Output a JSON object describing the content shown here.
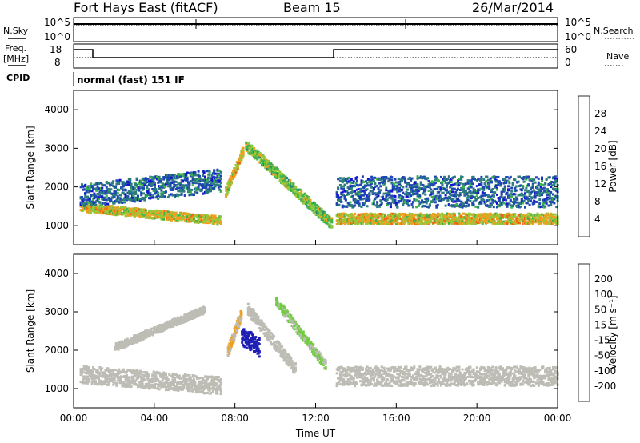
{
  "header": {
    "station": "Fort Hays East (fitACF)",
    "beam": "Beam 15",
    "date": "26/Mar/2014"
  },
  "side_labels": {
    "nsky": "N.Sky",
    "nsearch": "N.Search",
    "freq_line1": "Freq.",
    "freq_line2": "[MHz]",
    "nave": "Nave",
    "cpid": "CPID",
    "cpid_value": "normal (fast) 151 IF"
  },
  "top_axes": {
    "noise_left_ticks": [
      "10^5",
      "10^0"
    ],
    "noise_right_ticks": [
      "10^5",
      "10^0"
    ],
    "freq_left_ticks": [
      "18",
      "8"
    ],
    "nave_right_ticks": [
      "60",
      "0"
    ]
  },
  "colors": {
    "power_scale": [
      "#1414d2",
      "#1e46b4",
      "#2d7d7d",
      "#3cb44b",
      "#96c83c",
      "#f0a01e",
      "#f06414",
      "#e61e0a"
    ],
    "velocity_scale": [
      "#e61414",
      "#f06414",
      "#f0a01e",
      "#bdbdb5",
      "#bdbdb5",
      "#6ecd3c",
      "#2d8c5a",
      "#2846b4",
      "#1e1eb4"
    ]
  },
  "chart_data": [
    {
      "type": "heatmap",
      "title": "Power",
      "xlabel": "",
      "ylabel": "Slant Range [km]",
      "ylim": [
        500,
        4500
      ],
      "yticks": [
        "1000",
        "2000",
        "3000",
        "4000"
      ],
      "colorbar": {
        "label": "Power [dB]",
        "ticks": [
          "4",
          "8",
          "12",
          "16",
          "20",
          "24",
          "28"
        ],
        "range": [
          0,
          32
        ]
      },
      "bands": [
        {
          "x_start": 0.3,
          "x_end": 7.3,
          "y_start": 1500,
          "y_end": 1150,
          "thickness": 220,
          "value": 20
        },
        {
          "x_start": 0.3,
          "x_end": 7.3,
          "y_start": 1800,
          "y_end": 2200,
          "thickness": 600,
          "value": 8
        },
        {
          "x_start": 7.5,
          "x_end": 8.4,
          "y_start": 1900,
          "y_end": 3000,
          "thickness": 250,
          "value": 20
        },
        {
          "x_start": 8.5,
          "x_end": 12.8,
          "y_start": 3100,
          "y_end": 1050,
          "thickness": 280,
          "value": 16
        },
        {
          "x_start": 13.0,
          "x_end": 24.0,
          "y_start": 1200,
          "y_end": 1200,
          "thickness": 280,
          "value": 20
        },
        {
          "x_start": 13.0,
          "x_end": 24.0,
          "y_start": 1900,
          "y_end": 1900,
          "thickness": 800,
          "value": 8
        }
      ]
    },
    {
      "type": "heatmap",
      "title": "Velocity",
      "xlabel": "Time UT",
      "ylabel": "Slant Range [km]",
      "ylim": [
        500,
        4500
      ],
      "yticks": [
        "1000",
        "2000",
        "3000",
        "4000"
      ],
      "xticks": [
        "00:00",
        "04:00",
        "08:00",
        "12:00",
        "16:00",
        "20:00",
        "00:00"
      ],
      "xlim": [
        0,
        24
      ],
      "colorbar": {
        "label": "Velocity [m s⁻¹]",
        "ticks": [
          "-200",
          "-100",
          "-50",
          "-15",
          "15",
          "50",
          "100",
          "200"
        ],
        "range": [
          -250,
          250
        ]
      },
      "bands": [
        {
          "x_start": 0.3,
          "x_end": 7.3,
          "y_start": 1400,
          "y_end": 1100,
          "thickness": 450,
          "value": 0
        },
        {
          "x_start": 2.0,
          "x_end": 6.5,
          "y_start": 2100,
          "y_end": 3100,
          "thickness": 200,
          "value": -60
        },
        {
          "x_start": 7.6,
          "x_end": 8.3,
          "y_start": 2000,
          "y_end": 3000,
          "thickness": 300,
          "value": -80
        },
        {
          "x_start": 8.3,
          "x_end": 9.2,
          "y_start": 2400,
          "y_end": 2100,
          "thickness": 500,
          "value": 250
        },
        {
          "x_start": 8.6,
          "x_end": 11.0,
          "y_start": 3100,
          "y_end": 1500,
          "thickness": 300,
          "value": 0
        },
        {
          "x_start": 10.0,
          "x_end": 12.5,
          "y_start": 3300,
          "y_end": 1600,
          "thickness": 250,
          "value": 30
        },
        {
          "x_start": 13.0,
          "x_end": 24.0,
          "y_start": 1350,
          "y_end": 1350,
          "thickness": 500,
          "value": 0
        }
      ]
    }
  ]
}
